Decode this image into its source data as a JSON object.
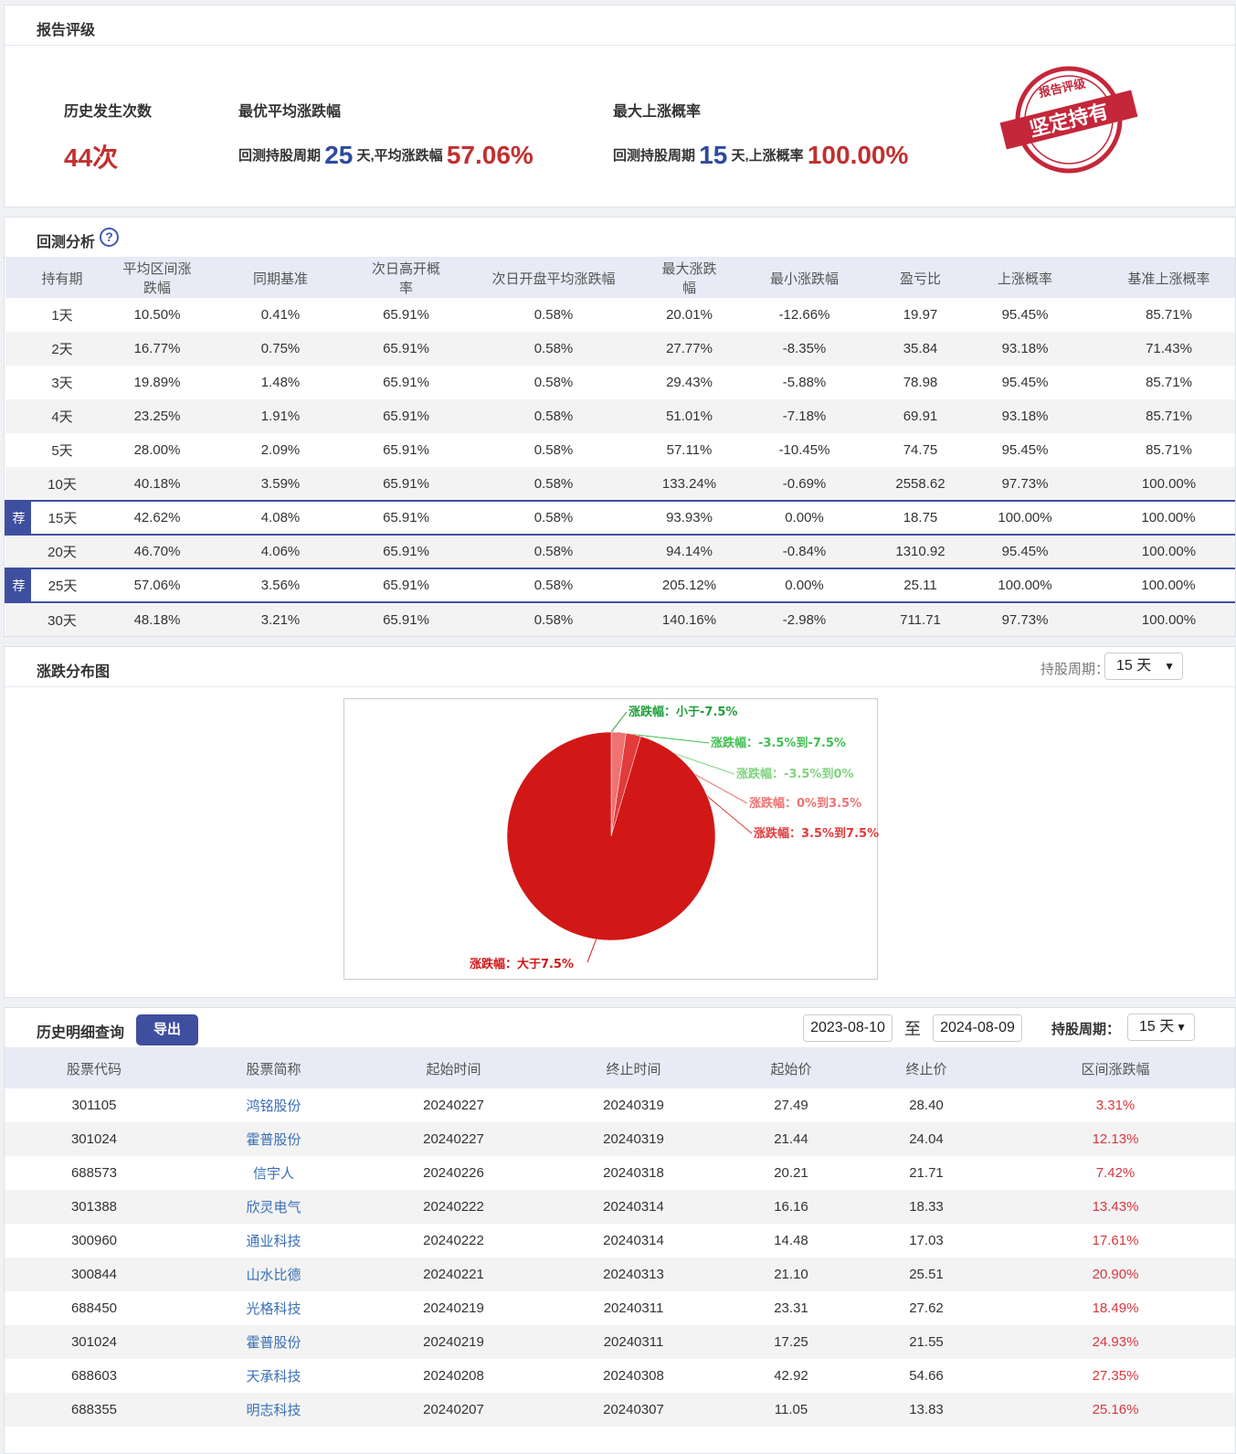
{
  "rating": {
    "title": "报告评级",
    "occurrences_label": "历史发生次数",
    "occurrences_value": "44次",
    "best_avg_label": "最优平均涨跌幅",
    "best_avg_prefix": "回测持股周期",
    "best_avg_period": "25",
    "best_avg_mid": "天,平均涨跌幅",
    "best_avg_value": "57.06%",
    "max_up_label": "最大上涨概率",
    "max_up_prefix": "回测持股周期",
    "max_up_period": "15",
    "max_up_mid": "天,上涨概率",
    "max_up_value": "100.00%",
    "stamp_top": "报告评级",
    "stamp_main": "坚定持有",
    "stamp_color": "#c4273a"
  },
  "backtest": {
    "title": "回测分析",
    "help_icon": "question-icon",
    "badge": "荐",
    "columns": [
      "持有期",
      "平均区间涨跌幅",
      "同期基准",
      "次日高开概率",
      "次日开盘平均涨跌幅",
      "最大涨跌幅",
      "最小涨跌幅",
      "盈亏比",
      "上涨概率",
      "基准上涨概率"
    ],
    "rows": [
      {
        "rec": false,
        "cells": [
          "1天",
          "10.50%",
          "0.41%",
          "65.91%",
          "0.58%",
          "20.01%",
          "-12.66%",
          "19.97",
          "95.45%",
          "85.71%"
        ]
      },
      {
        "rec": false,
        "cells": [
          "2天",
          "16.77%",
          "0.75%",
          "65.91%",
          "0.58%",
          "27.77%",
          "-8.35%",
          "35.84",
          "93.18%",
          "71.43%"
        ]
      },
      {
        "rec": false,
        "cells": [
          "3天",
          "19.89%",
          "1.48%",
          "65.91%",
          "0.58%",
          "29.43%",
          "-5.88%",
          "78.98",
          "95.45%",
          "85.71%"
        ]
      },
      {
        "rec": false,
        "cells": [
          "4天",
          "23.25%",
          "1.91%",
          "65.91%",
          "0.58%",
          "51.01%",
          "-7.18%",
          "69.91",
          "93.18%",
          "85.71%"
        ]
      },
      {
        "rec": false,
        "cells": [
          "5天",
          "28.00%",
          "2.09%",
          "65.91%",
          "0.58%",
          "57.11%",
          "-10.45%",
          "74.75",
          "95.45%",
          "85.71%"
        ]
      },
      {
        "rec": false,
        "cells": [
          "10天",
          "40.18%",
          "3.59%",
          "65.91%",
          "0.58%",
          "133.24%",
          "-0.69%",
          "2558.62",
          "97.73%",
          "100.00%"
        ]
      },
      {
        "rec": true,
        "cells": [
          "15天",
          "42.62%",
          "4.08%",
          "65.91%",
          "0.58%",
          "93.93%",
          "0.00%",
          "18.75",
          "100.00%",
          "100.00%"
        ]
      },
      {
        "rec": false,
        "cells": [
          "20天",
          "46.70%",
          "4.06%",
          "65.91%",
          "0.58%",
          "94.14%",
          "-0.84%",
          "1310.92",
          "95.45%",
          "100.00%"
        ]
      },
      {
        "rec": true,
        "cells": [
          "25天",
          "57.06%",
          "3.56%",
          "65.91%",
          "0.58%",
          "205.12%",
          "0.00%",
          "25.11",
          "100.00%",
          "100.00%"
        ]
      },
      {
        "rec": false,
        "cells": [
          "30天",
          "48.18%",
          "3.21%",
          "65.91%",
          "0.58%",
          "140.16%",
          "-2.98%",
          "711.71",
          "97.73%",
          "100.00%"
        ]
      }
    ]
  },
  "distribution": {
    "title": "涨跌分布图",
    "period_label": "持股周期：",
    "period_value": "15 天"
  },
  "chart_data": {
    "type": "pie",
    "slices": [
      {
        "label": "涨跌幅：小于-7.5%",
        "value": 0,
        "color": "#1f9e3a"
      },
      {
        "label": "涨跌幅：-3.5%到-7.5%",
        "value": 0,
        "color": "#3fbf4f"
      },
      {
        "label": "涨跌幅：-3.5%到0%",
        "value": 0,
        "color": "#7fd37f"
      },
      {
        "label": "涨跌幅：0%到3.5%",
        "value": 2.3,
        "color": "#f07373"
      },
      {
        "label": "涨跌幅：3.5%到7.5%",
        "value": 2.3,
        "color": "#e23b3b"
      },
      {
        "label": "涨跌幅：大于7.5%",
        "value": 95.4,
        "color": "#d21717"
      }
    ]
  },
  "history": {
    "title": "历史明细查询",
    "export_label": "导出",
    "date_from": "2023-08-10",
    "to_label": "至",
    "date_to": "2024-08-09",
    "period_label": "持股周期：",
    "period_value": "15 天",
    "columns": [
      "股票代码",
      "股票简称",
      "起始时间",
      "终止时间",
      "起始价",
      "终止价",
      "区间涨跌幅"
    ],
    "rows": [
      [
        "301105",
        "鸿铭股份",
        "20240227",
        "20240319",
        "27.49",
        "28.40",
        "3.31%"
      ],
      [
        "301024",
        "霍普股份",
        "20240227",
        "20240319",
        "21.44",
        "24.04",
        "12.13%"
      ],
      [
        "688573",
        "信宇人",
        "20240226",
        "20240318",
        "20.21",
        "21.71",
        "7.42%"
      ],
      [
        "301388",
        "欣灵电气",
        "20240222",
        "20240314",
        "16.16",
        "18.33",
        "13.43%"
      ],
      [
        "300960",
        "通业科技",
        "20240222",
        "20240314",
        "14.48",
        "17.03",
        "17.61%"
      ],
      [
        "300844",
        "山水比德",
        "20240221",
        "20240313",
        "21.10",
        "25.51",
        "20.90%"
      ],
      [
        "688450",
        "光格科技",
        "20240219",
        "20240311",
        "23.31",
        "27.62",
        "18.49%"
      ],
      [
        "301024",
        "霍普股份",
        "20240219",
        "20240311",
        "17.25",
        "21.55",
        "24.93%"
      ],
      [
        "688603",
        "天承科技",
        "20240208",
        "20240308",
        "42.92",
        "54.66",
        "27.35%"
      ],
      [
        "688355",
        "明志科技",
        "20240207",
        "20240307",
        "11.05",
        "13.83",
        "25.16%"
      ]
    ]
  }
}
